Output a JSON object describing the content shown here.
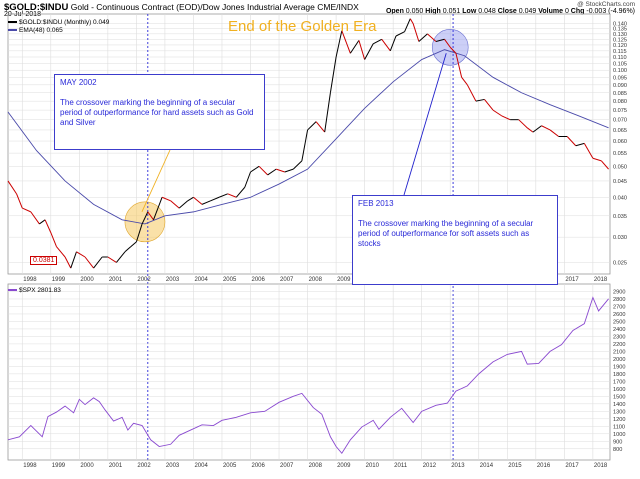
{
  "header": {
    "symbol": "$GOLD:$INDU",
    "description": "Gold - Continuous Contract (EOD)/Dow Jones Industrial Average CME/INDX",
    "date": "20-Jul-2018",
    "credit": "@ StockCharts.com",
    "ohlc": {
      "open_label": "Open",
      "open": "0.050",
      "high_label": "High",
      "high": "0.051",
      "low_label": "Low",
      "low": "0.048",
      "close_label": "Close",
      "close": "0.049",
      "volume_label": "Volume",
      "volume": "0",
      "chg_label": "Chg",
      "chg": "-0.003 (-4.96%)"
    }
  },
  "legend": {
    "ratio": "$GOLD:$INDU (Monthly) 0.049",
    "ema": "EMA(48) 0.065",
    "spx": "$SPX 2801.83"
  },
  "annotations": {
    "era_title": "End of the Golden Era",
    "may2002": {
      "title": "MAY 2002",
      "text": "The crossover marking the beginning of a secular period of outperformance for hard assets such as Gold and Silver"
    },
    "feb2013": {
      "title": "FEB 2013",
      "text": "The crossover marking the beginning of a secular period of outperformance for soft assets such as stocks"
    },
    "low_flag": "0.0381"
  },
  "colors": {
    "ratio_line": "#000000",
    "ratio_down": "#cc0000",
    "ema_line": "#4a4aaa",
    "spx_line": "#8a4ad0",
    "highlight_2002": "#f5c860",
    "highlight_2013": "#9aa0f0",
    "grid": "#dddddd",
    "vline": "#2a2ad8"
  },
  "chart_data": [
    {
      "type": "line",
      "title": "$GOLD:$INDU (Monthly)",
      "x_ticks": [
        "1998",
        "1999",
        "2000",
        "2001",
        "2002",
        "2003",
        "2004",
        "2005",
        "2006",
        "2007",
        "2008",
        "2009",
        "2010",
        "2011",
        "2012",
        "2013",
        "2014",
        "2015",
        "2016",
        "2017",
        "2018"
      ],
      "y_ticks": [
        0.025,
        0.03,
        0.035,
        0.04,
        0.045,
        0.05,
        0.055,
        0.06,
        0.065,
        0.07,
        0.075,
        0.08,
        0.085,
        0.09,
        0.095,
        0.1,
        0.105,
        0.11,
        0.115,
        0.12,
        0.125,
        0.13,
        0.135,
        0.14
      ],
      "y_scale": "log",
      "ylim": [
        0.023,
        0.15
      ],
      "xlim": [
        1997.5,
        2018.6
      ],
      "grid": true,
      "series": [
        {
          "name": "$GOLD:$INDU (Monthly)",
          "x": [
            1997.5,
            1997.8,
            1998.0,
            1998.3,
            1998.6,
            1998.8,
            1999.0,
            1999.2,
            1999.5,
            1999.7,
            1999.9,
            2000.2,
            2000.5,
            2000.8,
            2001.0,
            2001.3,
            2001.6,
            2001.8,
            2002.0,
            2002.2,
            2002.4,
            2002.6,
            2002.9,
            2003.2,
            2003.5,
            2003.8,
            2004.0,
            2004.3,
            2004.6,
            2004.9,
            2005.2,
            2005.5,
            2005.8,
            2006.0,
            2006.3,
            2006.6,
            2006.9,
            2007.2,
            2007.5,
            2007.8,
            2008.0,
            2008.3,
            2008.6,
            2008.8,
            2009.0,
            2009.2,
            2009.5,
            2009.8,
            2010.0,
            2010.3,
            2010.6,
            2010.9,
            2011.1,
            2011.4,
            2011.6,
            2011.7,
            2011.9,
            2012.2,
            2012.5,
            2012.8,
            2013.0,
            2013.2,
            2013.4,
            2013.6,
            2013.9,
            2014.2,
            2014.5,
            2014.8,
            2015.1,
            2015.4,
            2015.7,
            2015.9,
            2016.2,
            2016.5,
            2016.8,
            2017.1,
            2017.4,
            2017.7,
            2018.0,
            2018.3,
            2018.55
          ],
          "values": [
            0.045,
            0.041,
            0.037,
            0.036,
            0.033,
            0.034,
            0.031,
            0.028,
            0.026,
            0.024,
            0.027,
            0.026,
            0.024,
            0.026,
            0.026,
            0.025,
            0.027,
            0.028,
            0.029,
            0.033,
            0.036,
            0.034,
            0.04,
            0.039,
            0.037,
            0.039,
            0.04,
            0.038,
            0.039,
            0.04,
            0.041,
            0.04,
            0.043,
            0.048,
            0.05,
            0.047,
            0.049,
            0.048,
            0.049,
            0.052,
            0.065,
            0.069,
            0.064,
            0.085,
            0.11,
            0.133,
            0.113,
            0.124,
            0.108,
            0.121,
            0.125,
            0.115,
            0.128,
            0.132,
            0.145,
            0.14,
            0.123,
            0.13,
            0.123,
            0.125,
            0.118,
            0.113,
            0.095,
            0.09,
            0.08,
            0.081,
            0.075,
            0.072,
            0.07,
            0.07,
            0.066,
            0.064,
            0.067,
            0.065,
            0.062,
            0.062,
            0.058,
            0.059,
            0.053,
            0.052,
            0.049
          ]
        },
        {
          "name": "EMA(48)",
          "x": [
            1997.5,
            1998.5,
            1999.5,
            2000.5,
            2001.5,
            2002.3,
            2003.0,
            2004.0,
            2005.0,
            2006.0,
            2007.0,
            2008.0,
            2009.0,
            2010.0,
            2011.0,
            2012.0,
            2012.8,
            2013.5,
            2014.5,
            2015.5,
            2016.5,
            2017.5,
            2018.55
          ],
          "values": [
            0.074,
            0.056,
            0.045,
            0.038,
            0.034,
            0.033,
            0.035,
            0.036,
            0.038,
            0.04,
            0.044,
            0.049,
            0.061,
            0.076,
            0.092,
            0.108,
            0.116,
            0.111,
            0.095,
            0.085,
            0.078,
            0.072,
            0.066
          ]
        }
      ],
      "annotations": [
        "End of the Golden Era",
        "MAY 2002",
        "FEB 2013",
        "0.0381"
      ]
    },
    {
      "type": "line",
      "title": "$SPX",
      "x_ticks": [
        "1998",
        "1999",
        "2000",
        "2001",
        "2002",
        "2003",
        "2004",
        "2005",
        "2006",
        "2007",
        "2008",
        "2009",
        "2010",
        "2011",
        "2012",
        "2013",
        "2014",
        "2015",
        "2016",
        "2017",
        "2018"
      ],
      "y_ticks": [
        800,
        900,
        1000,
        1100,
        1200,
        1300,
        1400,
        1500,
        1600,
        1700,
        1800,
        1900,
        2000,
        2100,
        2200,
        2300,
        2400,
        2500,
        2600,
        2700,
        2800,
        2900
      ],
      "ylim": [
        650,
        3000
      ],
      "xlim": [
        1997.5,
        2018.6
      ],
      "grid": true,
      "series": [
        {
          "name": "$SPX",
          "x": [
            1997.5,
            1997.9,
            1998.3,
            1998.7,
            1998.9,
            1999.2,
            1999.5,
            1999.8,
            2000.0,
            2000.2,
            2000.5,
            2000.7,
            2000.9,
            2001.2,
            2001.5,
            2001.7,
            2001.9,
            2002.2,
            2002.5,
            2002.8,
            2003.2,
            2003.5,
            2003.9,
            2004.3,
            2004.7,
            2005.0,
            2005.5,
            2006.0,
            2006.5,
            2007.0,
            2007.5,
            2007.8,
            2008.2,
            2008.5,
            2008.8,
            2009.0,
            2009.2,
            2009.5,
            2009.9,
            2010.3,
            2010.5,
            2010.9,
            2011.3,
            2011.7,
            2012.0,
            2012.5,
            2012.9,
            2013.2,
            2013.6,
            2014.0,
            2014.5,
            2015.0,
            2015.5,
            2015.7,
            2016.1,
            2016.5,
            2016.9,
            2017.3,
            2017.7,
            2018.0,
            2018.2,
            2018.55
          ],
          "values": [
            920,
            960,
            1110,
            960,
            1230,
            1290,
            1370,
            1280,
            1460,
            1390,
            1480,
            1430,
            1320,
            1170,
            1220,
            1050,
            1140,
            1110,
            920,
            830,
            860,
            980,
            1050,
            1120,
            1110,
            1180,
            1220,
            1280,
            1300,
            1420,
            1500,
            1540,
            1350,
            1260,
            960,
            830,
            740,
            920,
            1090,
            1180,
            1060,
            1220,
            1340,
            1150,
            1300,
            1380,
            1410,
            1570,
            1640,
            1800,
            1960,
            2060,
            2100,
            1930,
            1940,
            2100,
            2190,
            2380,
            2470,
            2820,
            2640,
            2801.83
          ]
        }
      ]
    }
  ]
}
